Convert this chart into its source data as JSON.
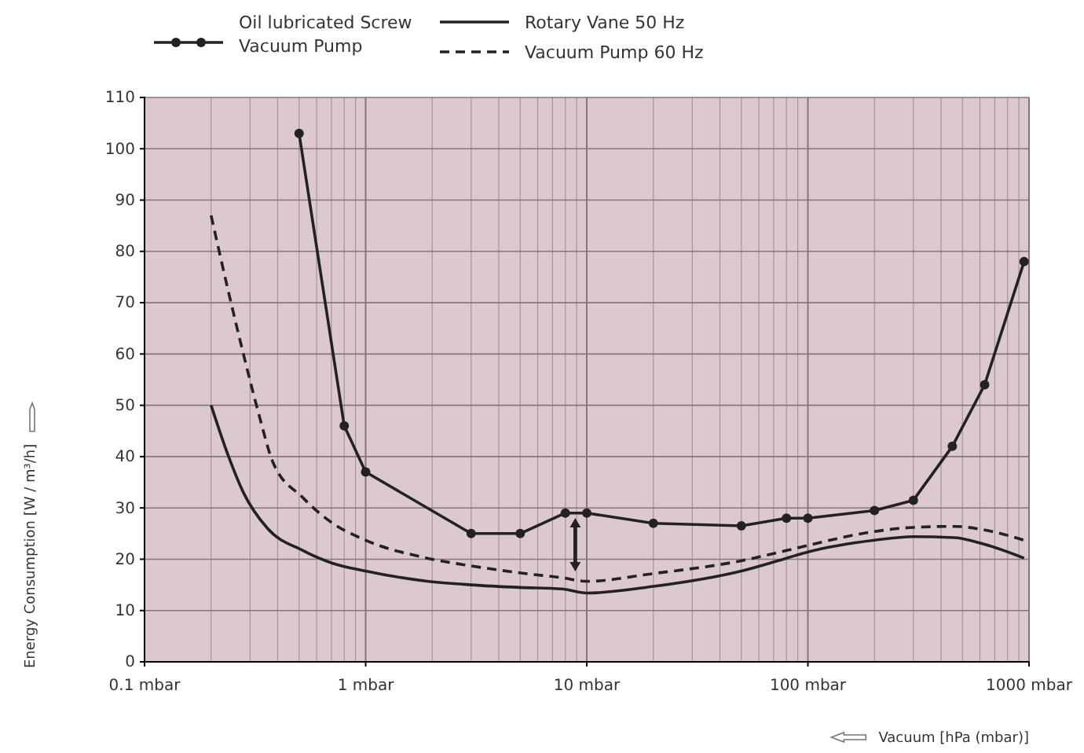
{
  "chart_data": {
    "type": "line",
    "xlabel": "Vacuum [hPa (mbar)]",
    "ylabel": "Energy Consumption [W / m³/h]",
    "log": "x",
    "grid": true,
    "legend": "top",
    "xlim": [
      0.1,
      1000
    ],
    "ylim": [
      0,
      110
    ],
    "xticks": [
      {
        "value": 0.1,
        "label": "0.1 mbar"
      },
      {
        "value": 1,
        "label": "1 mbar"
      },
      {
        "value": 10,
        "label": "10 mbar"
      },
      {
        "value": 100,
        "label": "100 mbar"
      },
      {
        "value": 1000,
        "label": "1000 mbar"
      }
    ],
    "yticks": [
      0,
      10,
      20,
      30,
      40,
      50,
      60,
      70,
      80,
      90,
      100,
      110
    ],
    "series": [
      {
        "name": "Oil lubricated Screw Vacuum Pump",
        "color": "#222222",
        "marker": "circle",
        "line_style": "solid",
        "x": [
          0.5,
          0.8,
          1,
          3,
          5,
          8,
          10,
          20,
          50,
          80,
          100,
          200,
          300,
          450,
          630,
          950
        ],
        "values": [
          103,
          46,
          37,
          25,
          25,
          29,
          29,
          27,
          26.5,
          28,
          28,
          29.5,
          31.5,
          42,
          54,
          78
        ]
      },
      {
        "name": "Rotary Vane 50 Hz",
        "color": "#222222",
        "marker": "none",
        "line_style": "solid",
        "x": [
          0.2,
          0.24,
          0.28,
          0.36,
          0.52,
          0.71,
          1,
          1.9,
          3,
          5,
          7.7,
          10,
          20,
          50,
          80,
          100,
          200,
          300,
          460,
          630,
          950
        ],
        "values": [
          50,
          40,
          33,
          26,
          21.7,
          19.2,
          17.7,
          15.7,
          15,
          14.5,
          14.2,
          13.4,
          14.7,
          17.7,
          20.2,
          21.4,
          23.7,
          24.4,
          24.2,
          22.9,
          20.2
        ]
      },
      {
        "name": "Vacuum Pump 60 Hz",
        "color": "#222222",
        "marker": "none",
        "line_style": "dashed",
        "x": [
          0.2,
          0.24,
          0.28,
          0.33,
          0.38,
          0.52,
          0.71,
          1,
          1.9,
          3,
          5.3,
          7.7,
          10,
          20,
          50,
          80,
          100,
          200,
          300,
          460,
          630,
          950
        ],
        "values": [
          87,
          72,
          60,
          48,
          39,
          32,
          27,
          23.7,
          20.2,
          18.7,
          17.2,
          16.4,
          15.7,
          17.2,
          19.7,
          21.7,
          22.7,
          25.4,
          26.2,
          26.4,
          25.7,
          23.7
        ]
      }
    ]
  }
}
